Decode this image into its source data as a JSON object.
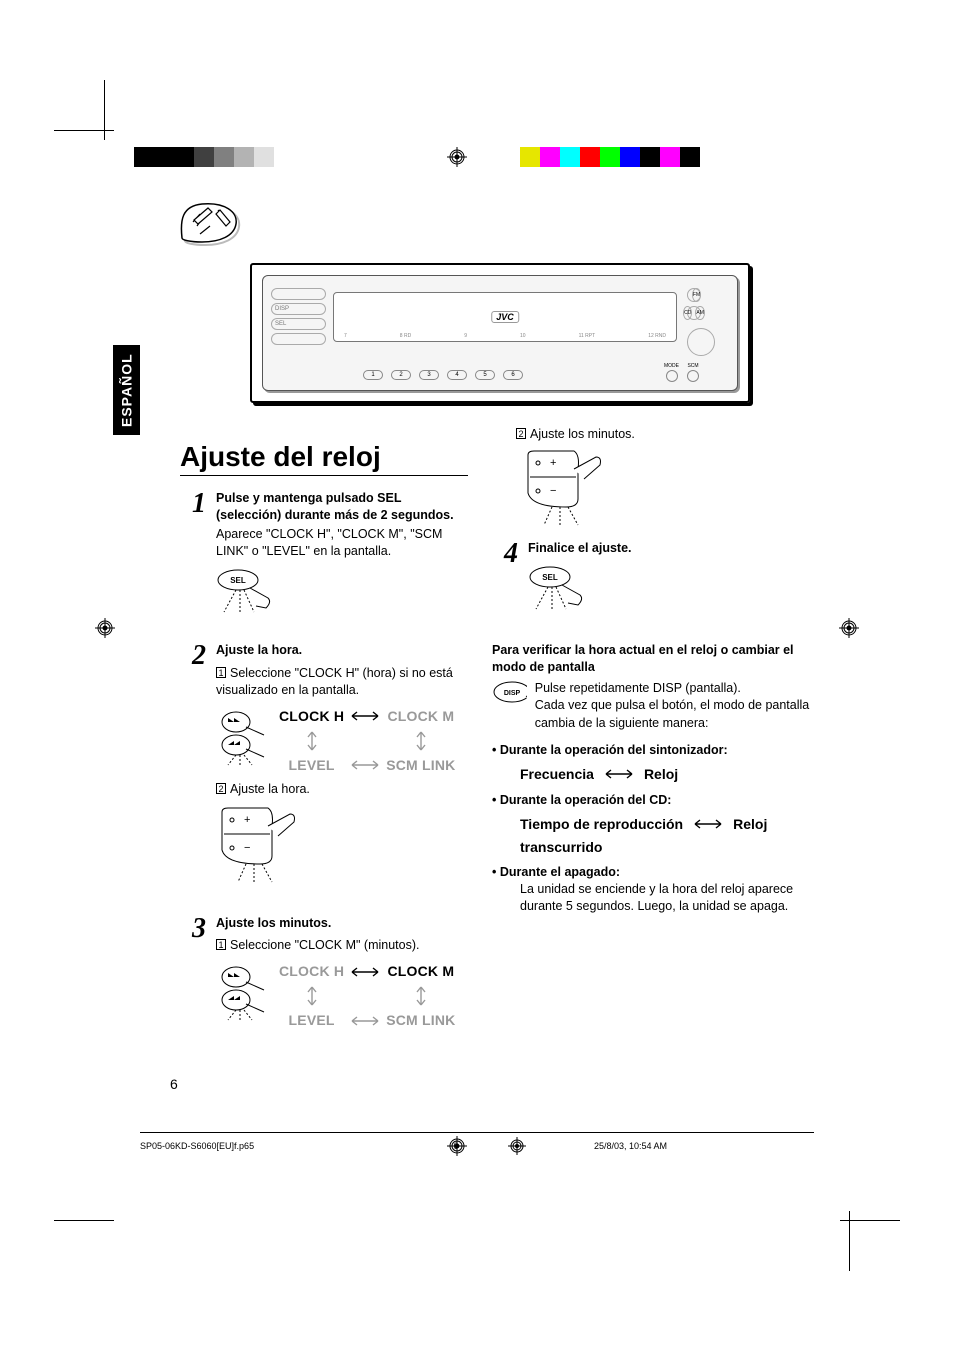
{
  "print_marks": {
    "gray_swatches": [
      "#000000",
      "#000000",
      "#000000",
      "#404040",
      "#808080",
      "#b3b3b3",
      "#e0e0e0"
    ],
    "color_swatches": [
      "#e6e600",
      "#ff00ff",
      "#00ffff",
      "#ff0000",
      "#00ff00",
      "#0000ff",
      "#000000",
      "#ff00ff",
      "#000000"
    ]
  },
  "language_tab": "ESPAÑOL",
  "radio": {
    "brand": "JVC",
    "left_buttons": [
      "",
      "DISP",
      "SEL",
      ""
    ],
    "right_buttons_row1": [
      "FM"
    ],
    "right_buttons_row2": [
      "CD",
      "AM"
    ],
    "preset_nums": [
      "1",
      "2",
      "3",
      "4",
      "5",
      "6"
    ],
    "mode_labels": [
      "MODE",
      "SCM"
    ],
    "strip_labels": [
      "7",
      "8 RD",
      "9",
      "10",
      "11 RPT",
      "12 RND"
    ]
  },
  "title": "Ajuste del reloj",
  "left_col": {
    "step1": {
      "num": "1",
      "head": "Pulse y mantenga pulsado SEL (selección) durante más de 2 segundos.",
      "sub": "Aparece \"CLOCK H\", \"CLOCK M\", \"SCM LINK\" o \"LEVEL\" en la pantalla."
    },
    "step2": {
      "num": "2",
      "head": "Ajuste la hora.",
      "sub1_n": "1",
      "sub1": "Seleccione \"CLOCK H\" (hora) si no está visualizado en la pantalla.",
      "cycle": {
        "tl": "CLOCK H",
        "tr": "CLOCK M",
        "bl": "LEVEL",
        "br": "SCM LINK"
      },
      "sub2_n": "2",
      "sub2": "Ajuste la hora."
    },
    "step3": {
      "num": "3",
      "head": "Ajuste los minutos.",
      "sub1_n": "1",
      "sub1": "Seleccione \"CLOCK M\" (minutos).",
      "cycle": {
        "tl": "CLOCK H",
        "tr": "CLOCK M",
        "bl": "LEVEL",
        "br": "SCM LINK"
      }
    }
  },
  "right_col": {
    "cont_sub_n": "2",
    "cont_sub": "Ajuste los minutos.",
    "step4": {
      "num": "4",
      "head": "Finalice el ajuste."
    },
    "verify_head": "Para verificar la hora actual en el reloj o cambiar el modo de pantalla",
    "verify_text": "Pulse repetidamente DISP (pantalla).\nCada vez que pulsa el botón, el modo de pantalla cambia de la siguiente manera:",
    "bullet_tuner": {
      "head": "Durante la operación del sintonizador:",
      "left": "Frecuencia",
      "right": "Reloj"
    },
    "bullet_cd": {
      "head": "Durante la operación del CD:",
      "left1": "Tiempo de reproducción",
      "right": "Reloj",
      "left2": "transcurrido"
    },
    "bullet_off": {
      "head": "Durante el apagado:",
      "body": "La unidad se enciende y la hora del reloj aparece durante 5 segundos. Luego, la unidad se apaga."
    }
  },
  "page_number": "6",
  "footer": {
    "file": "SP05-06KD-S6060[EU]f.p65",
    "page": "6",
    "date": "25/8/03, 10:54 AM"
  }
}
